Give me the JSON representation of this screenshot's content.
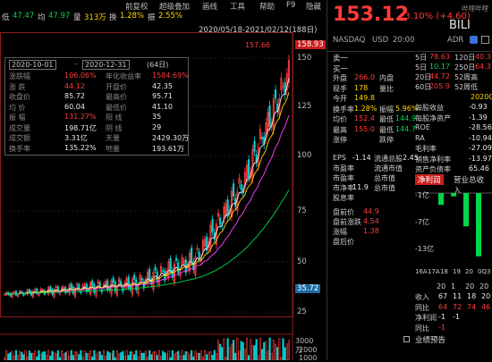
{
  "menubar": {
    "items": [
      "前复权",
      "超级叠加",
      "画线",
      "工具",
      "帮助",
      "F9",
      "隐藏"
    ]
  },
  "infobar": {
    "low_label": "低",
    "low_value": "47.47",
    "avg_label": "均",
    "avg_value": "47.97",
    "vol_label": "量",
    "vol_value": "313万",
    "turnover_label": "换",
    "turnover_value": "1.28%",
    "amp_label": "振",
    "amp_value": "2.55%"
  },
  "chart_header": {
    "range_label": "2020/05/18-2021/02/12(188日)",
    "max_label": "157.66",
    "price_tag": "158.93",
    "low_tag": "35.72"
  },
  "y_axis": {
    "ticks": [
      "150",
      "125",
      "100",
      "75",
      "50",
      "25"
    ]
  },
  "volume_axis": {
    "ticks": [
      "3000万",
      "2000",
      "1000"
    ]
  },
  "stats": {
    "date_from": "2020-10-01",
    "date_to": "2020-12-31",
    "days": "(64日)",
    "rows": [
      {
        "l1": "涨跌幅",
        "v1": "106.06%",
        "l2": "年化收益率",
        "v2": "1584.69%"
      },
      {
        "l1": "涨 跌",
        "v1": "44.12",
        "l2": "开盘价",
        "v2": "42.35"
      },
      {
        "l1": "收盘价",
        "v1": "85.72",
        "l2": "最高价",
        "v2": "95.71"
      },
      {
        "l1": "均 价",
        "v1": "60.04",
        "l2": "最低价",
        "v2": "41.10"
      },
      {
        "l1": "振 幅",
        "v1": "131.27%",
        "l2": "阳 线",
        "v2": "35"
      },
      {
        "l1": "成交量",
        "v1": "198.71亿",
        "l2": "阴 线",
        "v2": "29"
      },
      {
        "l1": "成交额",
        "v1": "3.31亿",
        "l2": "天量",
        "v2": "2429.30万"
      },
      {
        "l1": "换手率",
        "v1": "135.22%",
        "l2": "地量",
        "v2": "193.61万"
      }
    ]
  },
  "quote": {
    "price": "153.12",
    "change": "+3.10% (+4.60)",
    "brand": "哔哩哔哩",
    "exchange": "NASDAQ",
    "currency": "USD",
    "time": "20:00",
    "adr_label": "ADR",
    "ticker": "BILI",
    "sell1_label": "卖一",
    "buy1_label": "买一",
    "fields_left": [
      {
        "label": "最新",
        "value": "153.12"
      },
      {
        "label": "涨跌",
        "value": "+4.60"
      },
      {
        "label": "涨幅",
        "value": "+3.10%"
      },
      {
        "label": "外盘",
        "value": ""
      },
      {
        "label": "现手",
        "value": "178"
      },
      {
        "label": "总手",
        "value": ""
      },
      {
        "label": "均价",
        "value": ""
      },
      {
        "label": "开盘",
        "value": ""
      }
    ],
    "rows": [
      {
        "label": "外盘",
        "value": "266.0",
        "label2": "内盘",
        "value2": ""
      },
      {
        "label": "现手",
        "value": "178",
        "label2": "量比",
        "value2": ""
      },
      {
        "label": "今开",
        "value": "149.8",
        "label2": "",
        "value2": ""
      },
      {
        "label": "换手率",
        "value": "1.28%",
        "label2": "振幅",
        "value2": "5.96%"
      },
      {
        "label": "均价",
        "value": "152.4",
        "label2": "最低",
        "value2": "144.9"
      },
      {
        "label": "最高",
        "value": "155.0",
        "label2": "最低",
        "value2": "144.7"
      },
      {
        "label": "涨停",
        "value": "",
        "label2": "跌停",
        "value2": ""
      }
    ],
    "periods": [
      {
        "label": "5日",
        "v1": "78.63",
        "l2": "120日",
        "v2": "40.3"
      },
      {
        "label": "5日",
        "v1": "10.17",
        "l2": "250日",
        "v2": "64.3"
      },
      {
        "label": "20日",
        "v1": "44.72",
        "l2": "52周高",
        "v2": ""
      },
      {
        "label": "60日",
        "v1": "205.9",
        "l2": "52周低",
        "v2": ""
      }
    ],
    "finance_header": "2020Q",
    "finance": [
      {
        "label": "每股收益",
        "value": "-0.93"
      },
      {
        "label": "每股净资产",
        "value": "-1.39"
      },
      {
        "label": "ROE",
        "value": "-28.56"
      },
      {
        "label": "RA",
        "value": "-10.94"
      },
      {
        "label": "毛利率",
        "value": "-27.09"
      },
      {
        "label": "销售净利率",
        "value": "-13.97"
      },
      {
        "label": "资产负债率",
        "value": "65.46"
      }
    ],
    "left_metrics": [
      {
        "label": "EPS",
        "value": "-1.14"
      },
      {
        "label": "市盈率",
        "value": ""
      },
      {
        "label": "市盈率",
        "value": ""
      },
      {
        "label": "市净率",
        "value": "11.9"
      },
      {
        "label": "股息率",
        "value": ""
      }
    ],
    "mid_metrics": [
      {
        "label": "流通总股",
        "value": "2.45"
      },
      {
        "label": "流通市值",
        "value": ""
      },
      {
        "label": "总市值",
        "value": ""
      },
      {
        "label": "总市值",
        "value": ""
      }
    ],
    "tabs": [
      "净利润",
      "营业总收入"
    ],
    "net_profit_axis": [
      "-1亿",
      "-7亿",
      "-13亿"
    ],
    "net_profit_values": [
      -2.2,
      -0.6,
      -6.2,
      -11.8
    ],
    "years": [
      "16A",
      "17A",
      "18",
      "19",
      "20",
      "0Q3"
    ],
    "year_header": [
      "20",
      "1",
      "20",
      "20"
    ],
    "bottom_rows": [
      {
        "label": "收入",
        "values": [
          "67",
          "11",
          "18",
          "20"
        ]
      },
      {
        "label": "同比",
        "values": [
          "64",
          "72",
          "74",
          "46"
        ]
      },
      {
        "label": "净利润",
        "values": [
          "-1",
          "-1",
          "",
          ""
        ]
      },
      {
        "label": "同比",
        "values": [
          "-1",
          "",
          "",
          ""
        ]
      }
    ],
    "forecast_label": "业绩预告",
    "pre_labels": [
      {
        "label": "盘前价",
        "value": "44.9"
      },
      {
        "label": "盘前涨跌",
        "value": "4.54"
      },
      {
        "label": "涨幅",
        "value": "1.38"
      },
      {
        "label": "盘后价",
        "value": ""
      }
    ]
  }
}
